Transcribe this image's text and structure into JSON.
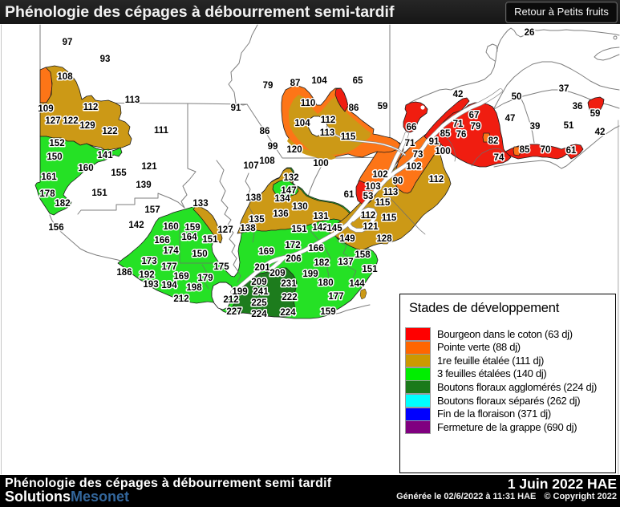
{
  "header": {
    "title": "Phénologie des cépages à débourrement semi-tardif",
    "back_button": "Retour à Petits fruits"
  },
  "footer": {
    "title": "Phénologie des cépages à débourrement semi tardif",
    "date": "1 Juin 2022 HAE",
    "brand_left": "Solutions",
    "brand_right": "Mesonet",
    "generated": "Générée le 02/6/2022 à 11:31 HAE",
    "copyright": "© Copyright 2022"
  },
  "legend": {
    "title": "Stades de développement",
    "items": [
      {
        "label": "Bourgeon dans le coton (63 dj)",
        "color": "#ff0000"
      },
      {
        "label": "Pointe verte (88 dj)",
        "color": "#ff6600"
      },
      {
        "label": "1re feuille étalée (111 dj)",
        "color": "#cc9900"
      },
      {
        "label": "3 feuilles étalées (140 dj)",
        "color": "#00ee00"
      },
      {
        "label": "Boutons floraux agglomérés (224 dj)",
        "color": "#1a7a1a"
      },
      {
        "label": "Boutons floraux séparés (262 dj)",
        "color": "#00ffff"
      },
      {
        "label": "Fin de la floraison (371 dj)",
        "color": "#0000ff"
      },
      {
        "label": "Fermeture de la grappe (690 dj)",
        "color": "#800080"
      }
    ]
  },
  "map": {
    "palette": {
      "red": "#f01d10",
      "orange": "#fd7517",
      "gold": "#cc9916",
      "green": "#25e125",
      "darkgreen": "#1d7c1d",
      "border": "#7e7e7e",
      "outline": "#1c1c1c"
    },
    "stations": [
      [
        97,
        84,
        52
      ],
      [
        93,
        131,
        73
      ],
      [
        108,
        81,
        95
      ],
      [
        109,
        57,
        135
      ],
      [
        112,
        113,
        133
      ],
      [
        113,
        165,
        124
      ],
      [
        127,
        66,
        150
      ],
      [
        122,
        88,
        150
      ],
      [
        129,
        109,
        156
      ],
      [
        122,
        137,
        163
      ],
      [
        152,
        71,
        178
      ],
      [
        150,
        68,
        195
      ],
      [
        141,
        131,
        193
      ],
      [
        160,
        107,
        209
      ],
      [
        161,
        61,
        220
      ],
      [
        178,
        59,
        241
      ],
      [
        182,
        78,
        253
      ],
      [
        156,
        70,
        283
      ],
      [
        155,
        148,
        215
      ],
      [
        121,
        186,
        207
      ],
      [
        139,
        179,
        230
      ],
      [
        151,
        124,
        240
      ],
      [
        157,
        190,
        261
      ],
      [
        142,
        170,
        280
      ],
      [
        111,
        201,
        162
      ],
      [
        166,
        202,
        299
      ],
      [
        79,
        334,
        106
      ],
      [
        87,
        368,
        103
      ],
      [
        104,
        398,
        100
      ],
      [
        110,
        384,
        128
      ],
      [
        104,
        377,
        153
      ],
      [
        91,
        294,
        134
      ],
      [
        86,
        330,
        163
      ],
      [
        65,
        446,
        100
      ],
      [
        86,
        441,
        134
      ],
      [
        59,
        477,
        132
      ],
      [
        99,
        340,
        182
      ],
      [
        120,
        367,
        186
      ],
      [
        107,
        313,
        206
      ],
      [
        108,
        333,
        200
      ],
      [
        100,
        400,
        203
      ],
      [
        112,
        409,
        149
      ],
      [
        113,
        408,
        165
      ],
      [
        115,
        434,
        170
      ],
      [
        42,
        571,
        117
      ],
      [
        66,
        513,
        158
      ],
      [
        71,
        511,
        178
      ],
      [
        73,
        521,
        192
      ],
      [
        91,
        541,
        176
      ],
      [
        100,
        552,
        188
      ],
      [
        102,
        474,
        217
      ],
      [
        102,
        516,
        207
      ],
      [
        90,
        496,
        225
      ],
      [
        112,
        544,
        223
      ],
      [
        103,
        465,
        232
      ],
      [
        113,
        487,
        239
      ],
      [
        61,
        435,
        242
      ],
      [
        53,
        459,
        244
      ],
      [
        115,
        477,
        252
      ],
      [
        26,
        660,
        40
      ],
      [
        37,
        703,
        110
      ],
      [
        50,
        644,
        120
      ],
      [
        36,
        720,
        132
      ],
      [
        59,
        742,
        141
      ],
      [
        47,
        636,
        147
      ],
      [
        51,
        709,
        156
      ],
      [
        39,
        667,
        157
      ],
      [
        42,
        748,
        164
      ],
      [
        67,
        591,
        143
      ],
      [
        71,
        571,
        154
      ],
      [
        79,
        593,
        157
      ],
      [
        85,
        555,
        166
      ],
      [
        76,
        575,
        167
      ],
      [
        82,
        615,
        175
      ],
      [
        85,
        654,
        186
      ],
      [
        70,
        680,
        186
      ],
      [
        61,
        712,
        187
      ],
      [
        74,
        622,
        196
      ],
      [
        132,
        363,
        221
      ],
      [
        147,
        360,
        237
      ],
      [
        134,
        352,
        247
      ],
      [
        133,
        250,
        253
      ],
      [
        138,
        316,
        246
      ],
      [
        130,
        374,
        257
      ],
      [
        136,
        350,
        266
      ],
      [
        131,
        400,
        269
      ],
      [
        135,
        320,
        273
      ],
      [
        127,
        281,
        286
      ],
      [
        138,
        309,
        284
      ],
      [
        160,
        213,
        282
      ],
      [
        159,
        240,
        283
      ],
      [
        164,
        236,
        295
      ],
      [
        151,
        262,
        298
      ],
      [
        151,
        373,
        285
      ],
      [
        142,
        399,
        283
      ],
      [
        145,
        417,
        284
      ],
      [
        112,
        459,
        268
      ],
      [
        115,
        485,
        271
      ],
      [
        121,
        462,
        282
      ],
      [
        149,
        433,
        297
      ],
      [
        128,
        479,
        297
      ],
      [
        174,
        213,
        312
      ],
      [
        150,
        249,
        316
      ],
      [
        173,
        186,
        325
      ],
      [
        177,
        211,
        332
      ],
      [
        175,
        276,
        332
      ],
      [
        186,
        155,
        339
      ],
      [
        192,
        183,
        342
      ],
      [
        169,
        226,
        344
      ],
      [
        179,
        256,
        346
      ],
      [
        193,
        188,
        354
      ],
      [
        194,
        211,
        355
      ],
      [
        198,
        242,
        358
      ],
      [
        212,
        226,
        372
      ],
      [
        172,
        365,
        305
      ],
      [
        166,
        394,
        309
      ],
      [
        169,
        332,
        313
      ],
      [
        206,
        366,
        322
      ],
      [
        201,
        327,
        333
      ],
      [
        209,
        346,
        340
      ],
      [
        199,
        387,
        341
      ],
      [
        209,
        323,
        351
      ],
      [
        231,
        360,
        353
      ],
      [
        180,
        406,
        352
      ],
      [
        144,
        445,
        353
      ],
      [
        199,
        299,
        363
      ],
      [
        241,
        325,
        363
      ],
      [
        222,
        361,
        370
      ],
      [
        177,
        419,
        369
      ],
      [
        225,
        323,
        377
      ],
      [
        212,
        288,
        373
      ],
      [
        227,
        292,
        388
      ],
      [
        224,
        323,
        391
      ],
      [
        224,
        359,
        389
      ],
      [
        159,
        409,
        388
      ],
      [
        182,
        401,
        327
      ],
      [
        137,
        431,
        326
      ],
      [
        158,
        452,
        317
      ],
      [
        151,
        461,
        335
      ]
    ]
  }
}
